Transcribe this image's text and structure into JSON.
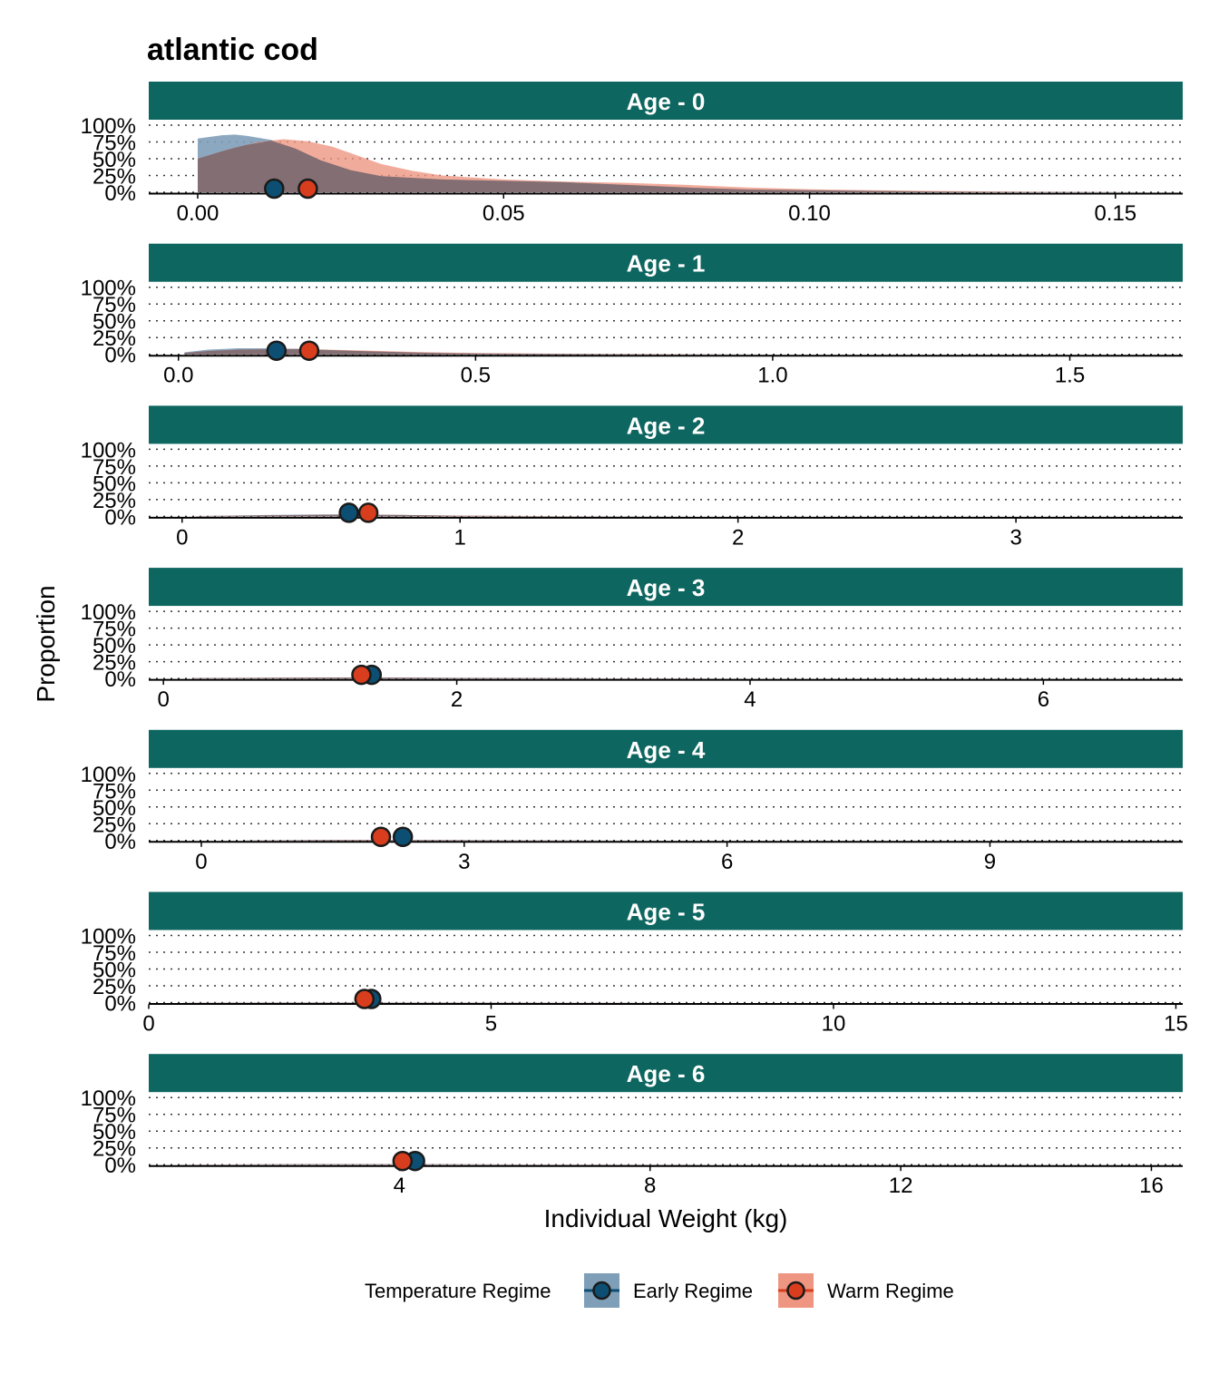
{
  "colors": {
    "strip": "#0e6660",
    "early_fill": "#7f9fb9",
    "early_point": "#0d4f73",
    "warm_fill": "#ee9682",
    "warm_point": "#d83d1d",
    "overlap": "#7d6b72"
  },
  "chart_data": {
    "type": "area",
    "title": "atlantic cod",
    "xlabel": "Individual Weight (kg)",
    "ylabel": "Proportion",
    "y_ticks": [
      "0%",
      "25%",
      "50%",
      "75%",
      "100%"
    ],
    "grid": "horizontal dotted",
    "legend": {
      "title": "Temperature Regime",
      "placement": "bottom",
      "entries": [
        "Early Regime",
        "Warm Regime"
      ]
    },
    "panels": [
      {
        "label": "Age - 0",
        "xlim": [
          -0.008,
          0.161
        ],
        "x_ticks": [
          0,
          0.05,
          0.1,
          0.15
        ],
        "x_tick_labels": [
          "0.00",
          "0.05",
          "0.10",
          "0.15"
        ],
        "series": [
          {
            "name": "Early Regime",
            "mean": 0.0125,
            "density": [
              [
                0,
                0.8
              ],
              [
                0.004,
                0.85
              ],
              [
                0.006,
                0.86
              ],
              [
                0.008,
                0.84
              ],
              [
                0.012,
                0.78
              ],
              [
                0.016,
                0.65
              ],
              [
                0.02,
                0.48
              ],
              [
                0.025,
                0.33
              ],
              [
                0.03,
                0.24
              ],
              [
                0.04,
                0.19
              ],
              [
                0.05,
                0.17
              ],
              [
                0.06,
                0.15
              ],
              [
                0.07,
                0.11
              ],
              [
                0.08,
                0.07
              ],
              [
                0.09,
                0.04
              ],
              [
                0.1,
                0.03
              ],
              [
                0.11,
                0.02
              ],
              [
                0.12,
                0.01
              ],
              [
                0.13,
                0.006
              ],
              [
                0.14,
                0.003
              ],
              [
                0.155,
                0
              ]
            ]
          },
          {
            "name": "Warm Regime",
            "mean": 0.018,
            "density": [
              [
                0,
                0.5
              ],
              [
                0.005,
                0.64
              ],
              [
                0.01,
                0.75
              ],
              [
                0.014,
                0.79
              ],
              [
                0.018,
                0.76
              ],
              [
                0.022,
                0.68
              ],
              [
                0.026,
                0.55
              ],
              [
                0.03,
                0.42
              ],
              [
                0.035,
                0.32
              ],
              [
                0.04,
                0.25
              ],
              [
                0.05,
                0.19
              ],
              [
                0.06,
                0.16
              ],
              [
                0.07,
                0.14
              ],
              [
                0.08,
                0.11
              ],
              [
                0.09,
                0.07
              ],
              [
                0.1,
                0.045
              ],
              [
                0.11,
                0.03
              ],
              [
                0.12,
                0.02
              ],
              [
                0.13,
                0.012
              ],
              [
                0.14,
                0.006
              ],
              [
                0.155,
                0
              ]
            ]
          }
        ]
      },
      {
        "label": "Age - 1",
        "xlim": [
          -0.05,
          1.69
        ],
        "x_ticks": [
          0,
          0.5,
          1.0,
          1.5
        ],
        "x_tick_labels": [
          "0.0",
          "0.5",
          "1.0",
          "1.5"
        ],
        "series": [
          {
            "name": "Early Regime",
            "mean": 0.165,
            "density": [
              [
                0.01,
                0.03
              ],
              [
                0.05,
                0.07
              ],
              [
                0.1,
                0.09
              ],
              [
                0.15,
                0.09
              ],
              [
                0.2,
                0.08
              ],
              [
                0.3,
                0.05
              ],
              [
                0.4,
                0.025
              ],
              [
                0.5,
                0.012
              ],
              [
                0.7,
                0.004
              ],
              [
                0.9,
                0.001
              ],
              [
                1.0,
                0
              ]
            ]
          },
          {
            "name": "Warm Regime",
            "mean": 0.22,
            "density": [
              [
                0.01,
                0.02
              ],
              [
                0.05,
                0.05
              ],
              [
                0.1,
                0.07
              ],
              [
                0.2,
                0.08
              ],
              [
                0.3,
                0.06
              ],
              [
                0.4,
                0.035
              ],
              [
                0.5,
                0.02
              ],
              [
                0.7,
                0.006
              ],
              [
                0.9,
                0.002
              ],
              [
                1.0,
                0
              ]
            ]
          }
        ]
      },
      {
        "label": "Age - 2",
        "xlim": [
          -0.12,
          3.6
        ],
        "x_ticks": [
          0,
          1,
          2,
          3
        ],
        "x_tick_labels": [
          "0",
          "1",
          "2",
          "3"
        ],
        "series": [
          {
            "name": "Early Regime",
            "mean": 0.6,
            "density": [
              [
                0.05,
                0.005
              ],
              [
                0.3,
                0.02
              ],
              [
                0.5,
                0.03
              ],
              [
                0.6,
                0.03
              ],
              [
                0.8,
                0.02
              ],
              [
                1.0,
                0.01
              ],
              [
                1.5,
                0.002
              ],
              [
                2.0,
                0
              ]
            ]
          },
          {
            "name": "Warm Regime",
            "mean": 0.67,
            "density": [
              [
                0.05,
                0.004
              ],
              [
                0.3,
                0.015
              ],
              [
                0.6,
                0.025
              ],
              [
                0.8,
                0.02
              ],
              [
                1.0,
                0.012
              ],
              [
                1.5,
                0.003
              ],
              [
                2.0,
                0
              ]
            ]
          }
        ]
      },
      {
        "label": "Age - 3",
        "xlim": [
          -0.1,
          6.95
        ],
        "x_ticks": [
          0,
          2,
          4,
          6
        ],
        "x_tick_labels": [
          "0",
          "2",
          "4",
          "6"
        ],
        "series": [
          {
            "name": "Early Regime",
            "mean": 1.42,
            "density": [
              [
                0.2,
                0.004
              ],
              [
                0.8,
                0.01
              ],
              [
                1.4,
                0.014
              ],
              [
                2.0,
                0.008
              ],
              [
                3.0,
                0.002
              ],
              [
                4.0,
                0
              ]
            ]
          },
          {
            "name": "Warm Regime",
            "mean": 1.35,
            "density": [
              [
                0.2,
                0.005
              ],
              [
                0.8,
                0.012
              ],
              [
                1.3,
                0.015
              ],
              [
                2.0,
                0.008
              ],
              [
                3.0,
                0.002
              ],
              [
                4.0,
                0
              ]
            ]
          }
        ]
      },
      {
        "label": "Age - 4",
        "xlim": [
          -0.6,
          11.2
        ],
        "x_ticks": [
          0,
          3,
          6,
          9
        ],
        "x_tick_labels": [
          "0",
          "3",
          "6",
          "9"
        ],
        "series": [
          {
            "name": "Early Regime",
            "mean": 2.3,
            "density": [
              [
                0.5,
                0.003
              ],
              [
                1.5,
                0.007
              ],
              [
                2.3,
                0.008
              ],
              [
                3.5,
                0.004
              ],
              [
                5.0,
                0.001
              ],
              [
                6.0,
                0
              ]
            ]
          },
          {
            "name": "Warm Regime",
            "mean": 2.05,
            "density": [
              [
                0.5,
                0.003
              ],
              [
                1.5,
                0.008
              ],
              [
                2.0,
                0.009
              ],
              [
                3.5,
                0.004
              ],
              [
                5.0,
                0.001
              ],
              [
                6.0,
                0
              ]
            ]
          }
        ]
      },
      {
        "label": "Age - 5",
        "xlim": [
          0,
          15.1
        ],
        "x_ticks": [
          0,
          5,
          10,
          15
        ],
        "x_tick_labels": [
          "0",
          "5",
          "10",
          "15"
        ],
        "series": [
          {
            "name": "Early Regime",
            "mean": 3.25,
            "density": [
              [
                0.5,
                0.002
              ],
              [
                2.0,
                0.005
              ],
              [
                3.2,
                0.006
              ],
              [
                5.0,
                0.003
              ],
              [
                7.0,
                0.001
              ],
              [
                8.0,
                0
              ]
            ]
          },
          {
            "name": "Warm Regime",
            "mean": 3.15,
            "density": [
              [
                0.5,
                0.002
              ],
              [
                2.0,
                0.005
              ],
              [
                3.1,
                0.006
              ],
              [
                5.0,
                0.003
              ],
              [
                7.0,
                0.001
              ],
              [
                8.0,
                0
              ]
            ]
          }
        ]
      },
      {
        "label": "Age - 6",
        "xlim": [
          0,
          16.5
        ],
        "x_ticks": [
          4,
          8,
          12,
          16
        ],
        "x_tick_labels": [
          "4",
          "8",
          "12",
          "16"
        ],
        "series": [
          {
            "name": "Early Regime",
            "mean": 4.25,
            "density": [
              [
                0.5,
                0.002
              ],
              [
                2.5,
                0.005
              ],
              [
                4.2,
                0.006
              ],
              [
                6.0,
                0.003
              ],
              [
                8.0,
                0.001
              ],
              [
                9.0,
                0
              ]
            ]
          },
          {
            "name": "Warm Regime",
            "mean": 4.05,
            "density": [
              [
                0.5,
                0.002
              ],
              [
                2.5,
                0.005
              ],
              [
                4.0,
                0.006
              ],
              [
                6.0,
                0.003
              ],
              [
                8.0,
                0.001
              ],
              [
                9.0,
                0
              ]
            ]
          }
        ]
      }
    ]
  }
}
